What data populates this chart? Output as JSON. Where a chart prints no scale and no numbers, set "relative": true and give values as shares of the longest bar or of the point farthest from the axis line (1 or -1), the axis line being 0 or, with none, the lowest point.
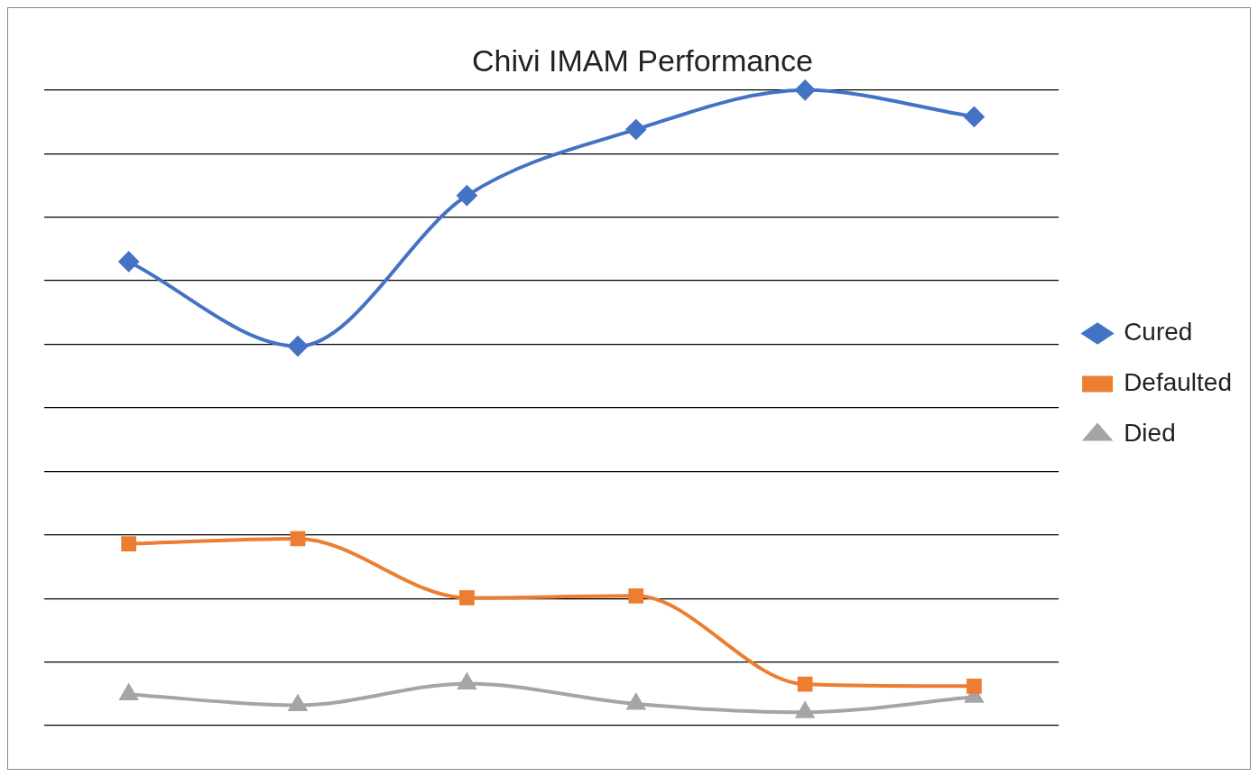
{
  "chart_data": {
    "type": "line",
    "title": "Chivi IMAM Performance",
    "relative": true,
    "grid": "y",
    "legend": "right",
    "categories": [
      null,
      null,
      null,
      null,
      null,
      null
    ],
    "series": [
      {
        "name": "Cured",
        "color": "#4472c4",
        "marker": "diamond",
        "values": [
          0.73,
          0.597,
          0.834,
          0.938,
          1,
          0.958
        ]
      },
      {
        "name": "Defaulted",
        "color": "#ed7d31",
        "marker": "square",
        "values": [
          0.286,
          0.294,
          0.201,
          0.204,
          0.065,
          0.062
        ]
      },
      {
        "name": "Died",
        "color": "#a5a5a5",
        "marker": "triangle",
        "values": [
          0.049,
          0.032,
          0.066,
          0.034,
          0.021,
          0.045
        ]
      }
    ]
  }
}
